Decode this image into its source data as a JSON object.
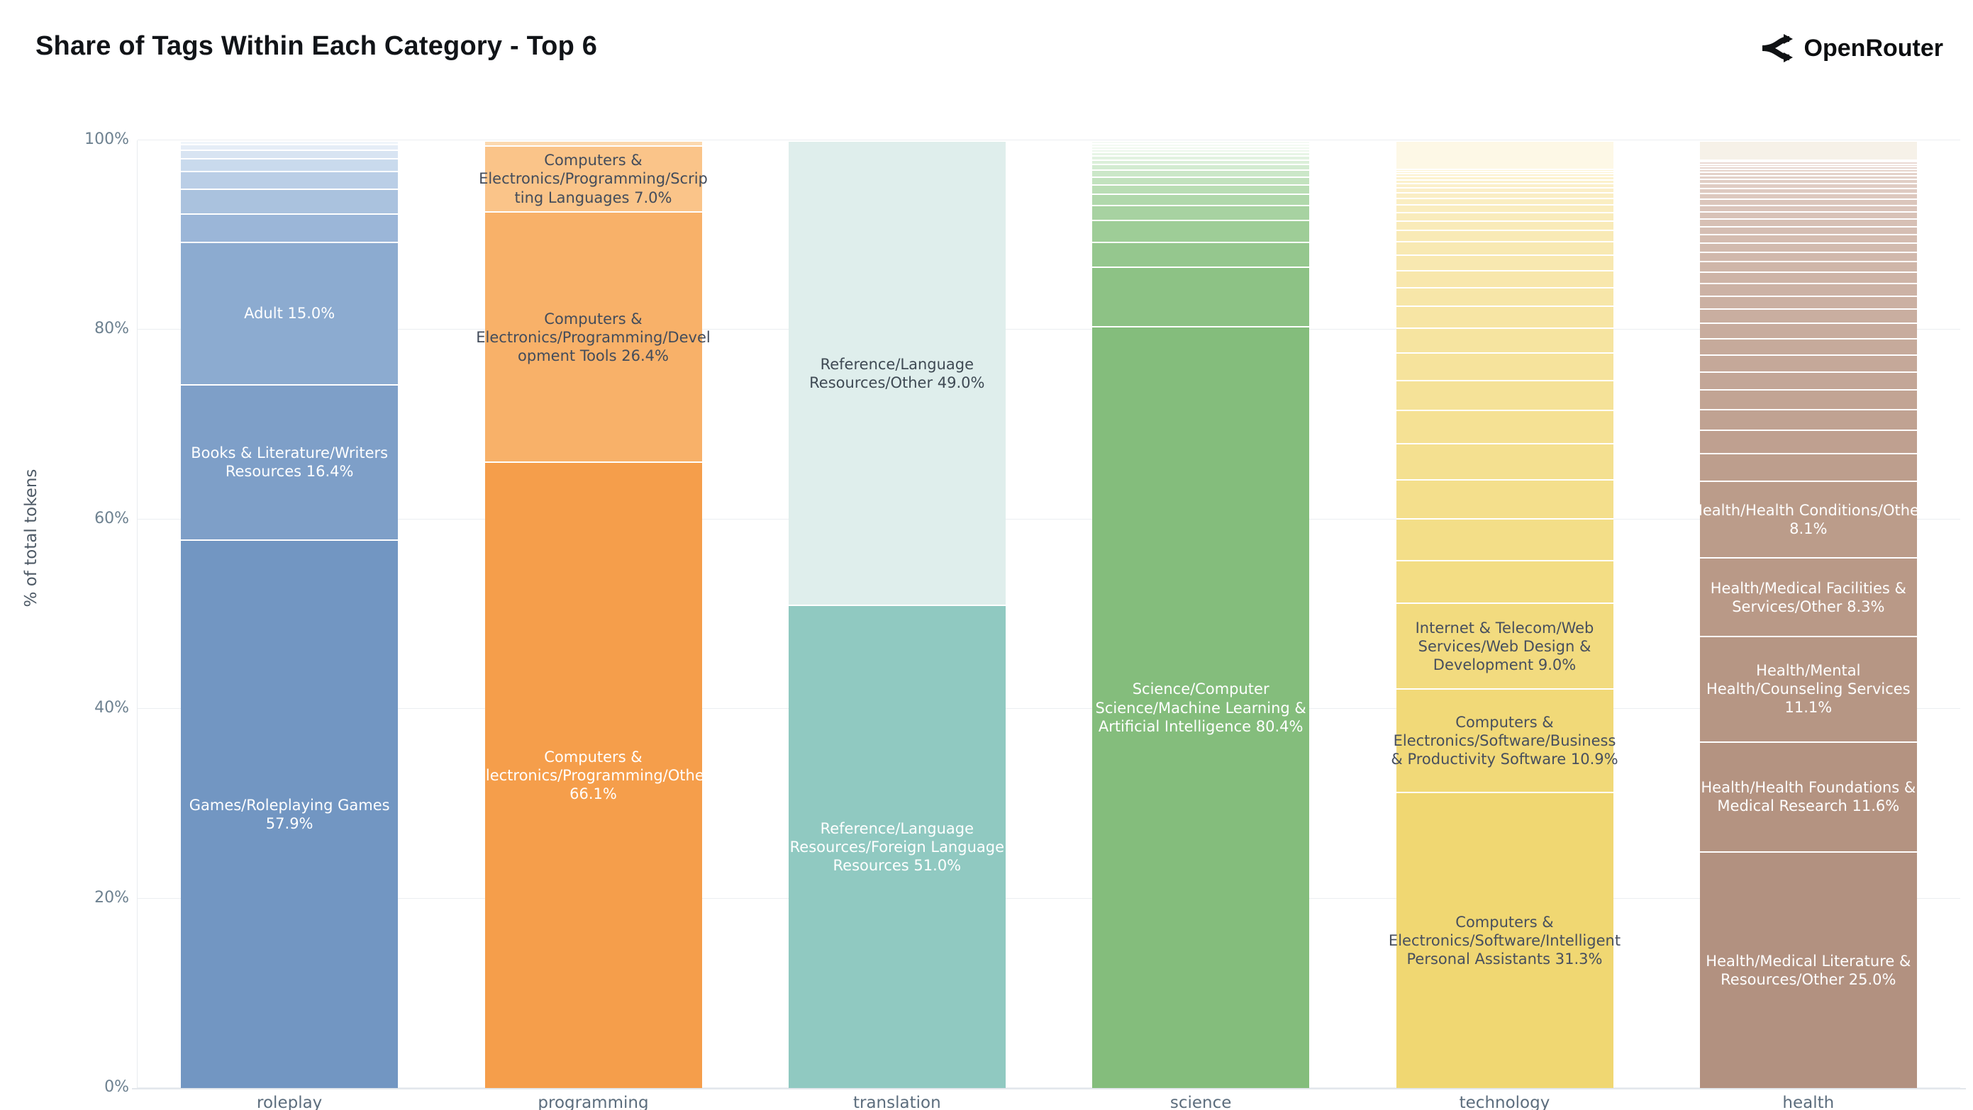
{
  "header": {
    "title": "Share of Tags Within Each Category - Top 6",
    "brand": {
      "icon": "openrouter-logo",
      "name": "OpenRouter"
    }
  },
  "chart_data": {
    "type": "bar",
    "stacked": true,
    "normalized": true,
    "title": "Share of Tags Within Each Category - Top 6",
    "xlabel": "",
    "ylabel": "% of total tokens",
    "ylim": [
      0,
      100
    ],
    "grid": true,
    "yticks": [
      {
        "value": 0,
        "label": "0%"
      },
      {
        "value": 20,
        "label": "20%"
      },
      {
        "value": 40,
        "label": "40%"
      },
      {
        "value": 60,
        "label": "60%"
      },
      {
        "value": 80,
        "label": "80%"
      },
      {
        "value": 100,
        "label": "100%"
      }
    ],
    "categories": [
      "roleplay",
      "programming",
      "translation",
      "science",
      "technology",
      "health"
    ],
    "bars": [
      {
        "category": "roleplay",
        "segments": [
          {
            "label": "Games/Roleplaying Games",
            "value": 57.9,
            "color": "#7296c2",
            "text": "#ffffff"
          },
          {
            "label": "Books & Literature/Writers Resources",
            "value": 16.4,
            "color": "#7e9fc8",
            "text": "#ffffff"
          },
          {
            "label": "Adult",
            "value": 15.0,
            "color": "#8cabd0",
            "text": "#ffffff"
          },
          {
            "label": "",
            "value": 3.0,
            "color": "#9bb6d8"
          },
          {
            "label": "",
            "value": 2.6,
            "color": "#aac2de"
          },
          {
            "label": "",
            "value": 1.9,
            "color": "#bacee6"
          },
          {
            "label": "",
            "value": 1.3,
            "color": "#c9daed"
          },
          {
            "label": "",
            "value": 0.9,
            "color": "#d8e4f2"
          },
          {
            "label": "",
            "value": 0.6,
            "color": "#e5edf7"
          },
          {
            "label": "",
            "value": 0.4,
            "color": "#f0f5fb"
          }
        ]
      },
      {
        "category": "programming",
        "segments": [
          {
            "label": "Computers & Electronics/Programming/Other",
            "value": 66.1,
            "color": "#f59e4b",
            "text": "#ffffff"
          },
          {
            "label": "Computers & Electronics/Programming/Development Tools",
            "value": 26.4,
            "color": "#f8b169",
            "text": "#434c5b"
          },
          {
            "label": "Computers & Electronics/Programming/Scripting Languages",
            "value": 7.0,
            "color": "#fac489",
            "text": "#434c5b"
          },
          {
            "label": "",
            "value": 0.5,
            "color": "#fcd9af"
          }
        ]
      },
      {
        "category": "translation",
        "segments": [
          {
            "label": "Reference/Language Resources/Foreign Language Resources",
            "value": 51.0,
            "color": "#90c9c1",
            "text": "#ffffff"
          },
          {
            "label": "Reference/Language Resources/Other",
            "value": 49.0,
            "color": "#dfeeec",
            "text": "#3f4a54"
          }
        ]
      },
      {
        "category": "science",
        "segments": [
          {
            "label": "Science/Computer Science/Machine Learning & Artificial Intelligence",
            "value": 80.4,
            "color": "#84bd7c",
            "text": "#ffffff"
          },
          {
            "label": "",
            "value": 6.3,
            "color": "#8dc285"
          },
          {
            "label": "",
            "value": 2.6,
            "color": "#95c78e"
          },
          {
            "label": "",
            "value": 2.3,
            "color": "#9ecd97"
          },
          {
            "label": "",
            "value": 1.6,
            "color": "#a7d2a1"
          },
          {
            "label": "",
            "value": 1.2,
            "color": "#b0d8ab"
          },
          {
            "label": "",
            "value": 1.0,
            "color": "#b9ddb4"
          },
          {
            "label": "",
            "value": 0.8,
            "color": "#c2e2be"
          },
          {
            "label": "",
            "value": 0.7,
            "color": "#cbe7c8"
          },
          {
            "label": "",
            "value": 0.6,
            "color": "#d3ebd1"
          },
          {
            "label": "",
            "value": 0.5,
            "color": "#dbefd9"
          },
          {
            "label": "",
            "value": 0.4,
            "color": "#e1f2e0"
          },
          {
            "label": "",
            "value": 0.4,
            "color": "#e7f5e6"
          },
          {
            "label": "",
            "value": 0.3,
            "color": "#ecf7eb"
          },
          {
            "label": "",
            "value": 0.3,
            "color": "#f0f9ef"
          },
          {
            "label": "",
            "value": 0.3,
            "color": "#f3faf3"
          },
          {
            "label": "",
            "value": 0.3,
            "color": "#f6fbf6"
          }
        ]
      },
      {
        "category": "technology",
        "segments": [
          {
            "label": "Computers & Electronics/Software/Intelligent Personal Assistants",
            "value": 31.3,
            "color": "#f0d772",
            "text": "#474f5e"
          },
          {
            "label": "Computers & Electronics/Software/Business & Productivity Software",
            "value": 10.9,
            "color": "#f1d978",
            "text": "#474f5e"
          },
          {
            "label": "Internet & Telecom/Web Services/Web Design & Development",
            "value": 9.0,
            "color": "#f2db7f",
            "text": "#474f5e"
          },
          {
            "label": "",
            "value": 4.55,
            "color": "#f3dd84"
          },
          {
            "label": "",
            "value": 4.4,
            "color": "#f3de88"
          },
          {
            "label": "",
            "value": 4.1,
            "color": "#f4df8c"
          },
          {
            "label": "",
            "value": 3.8,
            "color": "#f4e090"
          },
          {
            "label": "",
            "value": 3.5,
            "color": "#f5e194"
          },
          {
            "label": "",
            "value": 3.2,
            "color": "#f5e298"
          },
          {
            "label": "",
            "value": 2.9,
            "color": "#f6e39c"
          },
          {
            "label": "",
            "value": 2.6,
            "color": "#f6e4a0"
          },
          {
            "label": "",
            "value": 2.3,
            "color": "#f7e5a4"
          },
          {
            "label": "",
            "value": 2.0,
            "color": "#f7e6a8"
          },
          {
            "label": "",
            "value": 1.8,
            "color": "#f8e7ac"
          },
          {
            "label": "",
            "value": 1.6,
            "color": "#f8e8b0"
          },
          {
            "label": "",
            "value": 1.4,
            "color": "#f8e9b3"
          },
          {
            "label": "",
            "value": 1.2,
            "color": "#f9eab6"
          },
          {
            "label": "",
            "value": 1.0,
            "color": "#f9ebb9"
          },
          {
            "label": "",
            "value": 0.9,
            "color": "#f9ecbc"
          },
          {
            "label": "",
            "value": 0.8,
            "color": "#faedbf"
          },
          {
            "label": "",
            "value": 0.7,
            "color": "#faeec2"
          },
          {
            "label": "",
            "value": 0.6,
            "color": "#faeec5"
          },
          {
            "label": "",
            "value": 0.5,
            "color": "#fbefc8"
          },
          {
            "label": "",
            "value": 0.45,
            "color": "#fbf0ca"
          },
          {
            "label": "",
            "value": 0.4,
            "color": "#fbf1cc"
          },
          {
            "label": "",
            "value": 0.35,
            "color": "#fcf2ce"
          },
          {
            "label": "",
            "value": 0.3,
            "color": "#fcf2d0"
          },
          {
            "label": "",
            "value": 0.25,
            "color": "#fcf3d2"
          },
          {
            "label": "",
            "value": 0.2,
            "color": "#fcf4d4"
          },
          {
            "label": "",
            "value": 3.0,
            "color": "#fdf8e6"
          }
        ]
      },
      {
        "category": "health",
        "segments": [
          {
            "label": "Health/Medical Literature & Resources/Other",
            "value": 25.0,
            "color": "#b29180",
            "text": "#ffffff"
          },
          {
            "label": "Health/Health Foundations & Medical Research",
            "value": 11.6,
            "color": "#b49381",
            "text": "#ffffff"
          },
          {
            "label": "Health/Mental Health/Counseling Services",
            "value": 11.1,
            "color": "#b69684",
            "text": "#ffffff"
          },
          {
            "label": "Health/Medical Facilities & Services/Other",
            "value": 8.3,
            "color": "#b99987",
            "text": "#ffffff"
          },
          {
            "label": "Health/Health Conditions/Other",
            "value": 8.1,
            "color": "#bb9c8a",
            "text": "#ffffff"
          },
          {
            "label": "",
            "value": 2.95,
            "color": "#bd9e8d"
          },
          {
            "label": "",
            "value": 2.4,
            "color": "#bfa090"
          },
          {
            "label": "",
            "value": 2.2,
            "color": "#c0a292"
          },
          {
            "label": "",
            "value": 2.1,
            "color": "#c2a494"
          },
          {
            "label": "",
            "value": 1.9,
            "color": "#c3a697"
          },
          {
            "label": "",
            "value": 1.8,
            "color": "#c5a899"
          },
          {
            "label": "",
            "value": 1.7,
            "color": "#c6aa9b"
          },
          {
            "label": "",
            "value": 1.6,
            "color": "#c8ac9e"
          },
          {
            "label": "",
            "value": 1.5,
            "color": "#c9aea0"
          },
          {
            "label": "",
            "value": 1.4,
            "color": "#cbb0a2"
          },
          {
            "label": "",
            "value": 1.3,
            "color": "#ccb2a5"
          },
          {
            "label": "",
            "value": 1.2,
            "color": "#ceb4a7"
          },
          {
            "label": "",
            "value": 1.1,
            "color": "#cfb6a9"
          },
          {
            "label": "",
            "value": 1.0,
            "color": "#d1b8ac"
          },
          {
            "label": "",
            "value": 0.95,
            "color": "#d2baae"
          },
          {
            "label": "",
            "value": 0.9,
            "color": "#d4bcb0"
          },
          {
            "label": "",
            "value": 0.85,
            "color": "#d5beb3"
          },
          {
            "label": "",
            "value": 0.8,
            "color": "#d7c0b5"
          },
          {
            "label": "",
            "value": 0.75,
            "color": "#d8c2b7"
          },
          {
            "label": "",
            "value": 0.7,
            "color": "#dac4ba"
          },
          {
            "label": "",
            "value": 0.65,
            "color": "#dbc6bc"
          },
          {
            "label": "",
            "value": 0.6,
            "color": "#ddc8be"
          },
          {
            "label": "",
            "value": 0.55,
            "color": "#decac1"
          },
          {
            "label": "",
            "value": 0.5,
            "color": "#e0ccc3"
          },
          {
            "label": "",
            "value": 0.45,
            "color": "#e1cec5"
          },
          {
            "label": "",
            "value": 0.4,
            "color": "#e3d0c8"
          },
          {
            "label": "",
            "value": 0.35,
            "color": "#e4d2ca"
          },
          {
            "label": "",
            "value": 0.3,
            "color": "#e6d4cc"
          },
          {
            "label": "",
            "value": 0.3,
            "color": "#e7d6cf"
          },
          {
            "label": "",
            "value": 0.25,
            "color": "#e9d8d1"
          },
          {
            "label": "",
            "value": 0.25,
            "color": "#ead9d3"
          },
          {
            "label": "",
            "value": 0.2,
            "color": "#ebdbd4"
          },
          {
            "label": "",
            "value": 2.0,
            "color": "#f6f1e8"
          }
        ]
      }
    ]
  }
}
